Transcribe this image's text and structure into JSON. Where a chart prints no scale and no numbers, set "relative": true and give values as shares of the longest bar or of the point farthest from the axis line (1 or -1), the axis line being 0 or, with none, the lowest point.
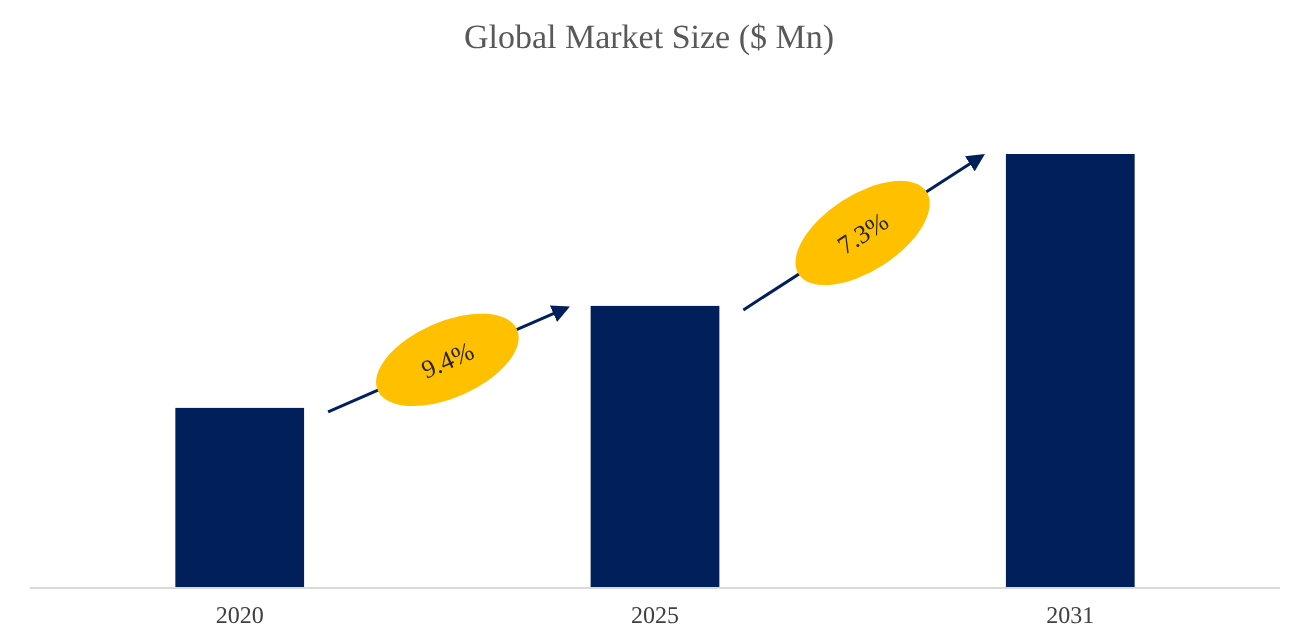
{
  "chart_data": {
    "type": "bar",
    "title": "Global Market Size ($ Mn)",
    "categories": [
      "2020",
      "2025",
      "2031"
    ],
    "relative": true,
    "values": [
      0.415,
      0.65,
      1
    ],
    "color": "#001f5b",
    "annotations": [
      "9.4%",
      "7.3%"
    ]
  }
}
